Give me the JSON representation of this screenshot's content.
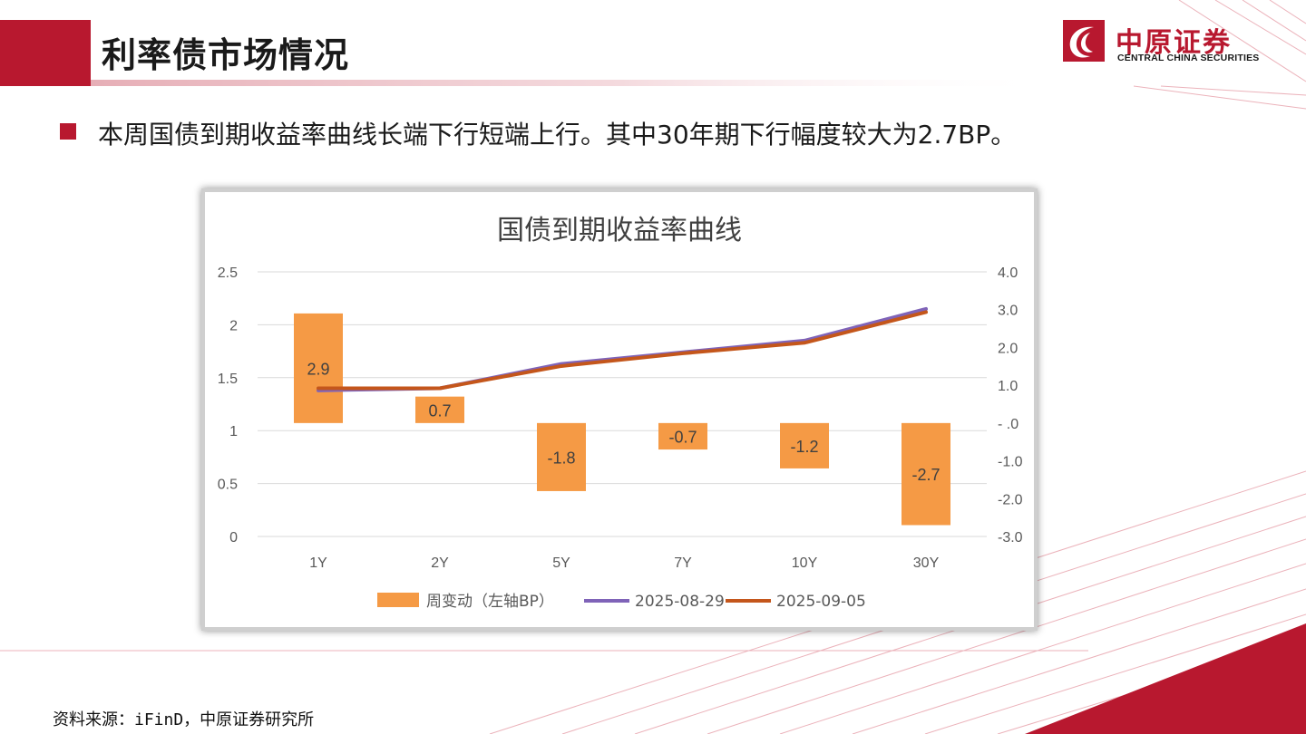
{
  "header": {
    "title": "利率债市场情况"
  },
  "logo": {
    "cn": "中原证券",
    "en": "CENTRAL CHINA SECURITIES"
  },
  "bullet": {
    "text": "本周国债到期收益率曲线长端下行短端上行。其中30年期下行幅度较大为2.7BP。"
  },
  "source": {
    "text": "资料来源：iFinD，中原证券研究所"
  },
  "colors": {
    "brand": "#b8182f",
    "bar": "#f59a45",
    "line1": "#7f63b8",
    "line2": "#c4561b"
  },
  "chart_data": {
    "type": "bar",
    "title": "国债到期收益率曲线",
    "categories": [
      "1Y",
      "2Y",
      "5Y",
      "7Y",
      "10Y",
      "30Y"
    ],
    "bar_series": {
      "name": "周变动（左轴BP）",
      "values": [
        2.9,
        0.7,
        -1.8,
        -0.7,
        -1.2,
        -2.7
      ],
      "data_labels": [
        "2.9",
        "0.7",
        "-1.8",
        "-0.7",
        "-1.2",
        "-2.7"
      ]
    },
    "line_series": [
      {
        "name": "2025-08-29",
        "values": [
          1.38,
          1.4,
          1.63,
          1.74,
          1.85,
          2.15
        ]
      },
      {
        "name": "2025-09-05",
        "values": [
          1.4,
          1.4,
          1.61,
          1.73,
          1.83,
          2.12
        ]
      }
    ],
    "left_axis": {
      "range": [
        0,
        2.5
      ],
      "ticks": [
        "0",
        "0.5",
        "1",
        "1.5",
        "2",
        "2.5"
      ]
    },
    "right_axis": {
      "range": [
        -3.0,
        4.0
      ],
      "ticks": [
        "-3.0",
        "-2.0",
        "-1.0",
        "- .0",
        "1.0",
        "2.0",
        "3.0",
        "4.0"
      ]
    },
    "grid": true,
    "legend_position": "bottom"
  }
}
